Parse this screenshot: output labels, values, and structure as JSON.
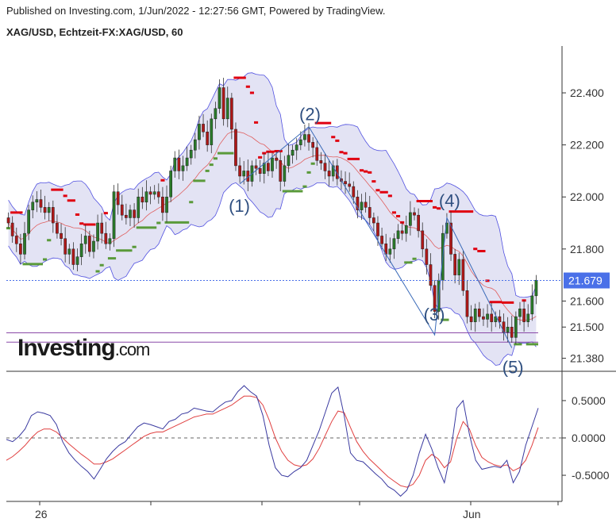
{
  "header": {
    "published": "Published on Investing.com, 1/Jun/2022 - 12:27:56 GMT, Powered by TradingView.",
    "symbol": "XAG/USD, Echtzeit-FX:XAG/USD, 60"
  },
  "logo": {
    "brand": "Investing",
    "suffix": ".com"
  },
  "colors": {
    "bollinger_fill": "#e3e3f4",
    "bollinger_line": "#5050e0",
    "mid_line": "#e06060",
    "up_stop": "#e00010",
    "down_stop": "#5a9a3a",
    "candle_up": "#2a7a2a",
    "candle_down": "#b01818",
    "last_price": "#4a70e8",
    "osc_fast": "#3a3aa0",
    "osc_slow": "#e04040"
  },
  "chart_data": [
    {
      "type": "candlestick",
      "ylim": [
        21.33,
        22.58
      ],
      "yticks": [
        "22.400",
        "22.200",
        "22.000",
        "21.800",
        "21.600",
        "21.500",
        "21.380"
      ],
      "last_price_label": "21.679",
      "last_price": 21.679,
      "xticks": [
        "26",
        "Jun"
      ],
      "wave_labels": [
        "(1)",
        "(2)",
        "(3)",
        "(4)",
        "(5)"
      ],
      "wave_points": [
        {
          "label": "(1)",
          "bar": 57,
          "price": 22.05
        },
        {
          "label": "(2)",
          "bar": 74,
          "price": 22.27
        },
        {
          "label": "(3)",
          "bar": 105,
          "price": 21.47
        },
        {
          "label": "(4)",
          "bar": 108,
          "price": 21.92
        },
        {
          "label": "(5)",
          "bar": 124,
          "price": 21.42
        }
      ],
      "horizontal_levels": [
        21.478,
        21.442
      ],
      "close": [
        21.9,
        21.85,
        21.82,
        21.78,
        21.86,
        21.95,
        21.98,
        21.99,
        21.96,
        21.94,
        21.96,
        21.9,
        21.86,
        21.84,
        21.78,
        21.8,
        21.74,
        21.77,
        21.82,
        21.85,
        21.79,
        21.83,
        21.9,
        21.86,
        21.82,
        21.84,
        22.02,
        21.97,
        21.93,
        21.92,
        21.95,
        21.92,
        22.0,
        21.98,
        22.02,
        22.01,
        22.02,
        22.0,
        21.94,
        22.0,
        22.1,
        22.15,
        22.1,
        22.12,
        22.15,
        22.18,
        22.22,
        22.28,
        22.25,
        22.2,
        22.3,
        22.34,
        22.42,
        22.3,
        22.38,
        22.26,
        22.12,
        22.08,
        22.1,
        22.06,
        22.12,
        22.11,
        22.09,
        22.13,
        22.1,
        22.15,
        22.14,
        22.06,
        22.12,
        22.16,
        22.18,
        22.2,
        22.22,
        22.24,
        22.21,
        22.19,
        22.14,
        22.13,
        22.1,
        22.08,
        22.12,
        22.07,
        22.06,
        22.05,
        22.04,
        22.0,
        21.95,
        21.98,
        21.96,
        21.92,
        21.9,
        21.85,
        21.82,
        21.78,
        21.8,
        21.84,
        21.87,
        21.86,
        21.89,
        21.94,
        21.93,
        21.87,
        21.8,
        21.74,
        21.66,
        21.56,
        21.68,
        21.86,
        21.9,
        21.78,
        21.7,
        21.76,
        21.64,
        21.54,
        21.52,
        21.57,
        21.54,
        21.53,
        21.55,
        21.52,
        21.54,
        21.52,
        21.48,
        21.5,
        21.46,
        21.54,
        21.57,
        21.52,
        21.55,
        21.62,
        21.68
      ]
    },
    {
      "type": "line",
      "ylim": [
        -0.85,
        0.85
      ],
      "yticks": [
        "0.5000",
        "0.0000",
        "-0.5000"
      ],
      "series": [
        {
          "name": "",
          "values": [
            -0.02,
            -0.05,
            0.02,
            0.12,
            0.3,
            0.35,
            0.33,
            0.3,
            0.18,
            -0.05,
            -0.2,
            -0.3,
            -0.38,
            -0.45,
            -0.55,
            -0.42,
            -0.28,
            -0.18,
            -0.1,
            -0.05,
            0.05,
            0.15,
            0.2,
            0.18,
            0.15,
            0.12,
            0.22,
            0.25,
            0.32,
            0.34,
            0.4,
            0.38,
            0.36,
            0.35,
            0.42,
            0.48,
            0.5,
            0.62,
            0.7,
            0.62,
            0.56,
            0.3,
            -0.1,
            -0.4,
            -0.5,
            -0.52,
            -0.45,
            -0.4,
            -0.3,
            -0.1,
            0.1,
            0.35,
            0.6,
            0.68,
            0.3,
            -0.2,
            -0.3,
            -0.32,
            -0.4,
            -0.48,
            -0.55,
            -0.65,
            -0.7,
            -0.78,
            -0.7,
            -0.5,
            -0.2,
            0.05,
            -0.15,
            -0.4,
            -0.6,
            -0.2,
            0.4,
            0.5,
            0.05,
            -0.3,
            -0.42,
            -0.4,
            -0.38,
            -0.4,
            -0.3,
            -0.6,
            -0.45,
            -0.1,
            0.15,
            0.4
          ]
        },
        {
          "name": "",
          "values": [
            -0.3,
            -0.25,
            -0.18,
            -0.1,
            0.0,
            0.08,
            0.12,
            0.12,
            0.08,
            0.0,
            -0.08,
            -0.15,
            -0.22,
            -0.28,
            -0.35,
            -0.35,
            -0.32,
            -0.28,
            -0.22,
            -0.16,
            -0.1,
            -0.04,
            0.02,
            0.06,
            0.08,
            0.08,
            0.12,
            0.16,
            0.2,
            0.24,
            0.28,
            0.3,
            0.32,
            0.32,
            0.36,
            0.4,
            0.44,
            0.5,
            0.56,
            0.56,
            0.54,
            0.44,
            0.24,
            0.0,
            -0.18,
            -0.3,
            -0.36,
            -0.38,
            -0.36,
            -0.28,
            -0.14,
            0.04,
            0.22,
            0.36,
            0.34,
            0.14,
            -0.05,
            -0.18,
            -0.28,
            -0.36,
            -0.44,
            -0.52,
            -0.58,
            -0.64,
            -0.66,
            -0.62,
            -0.5,
            -0.3,
            -0.22,
            -0.28,
            -0.4,
            -0.32,
            0.0,
            0.22,
            0.12,
            -0.1,
            -0.26,
            -0.32,
            -0.36,
            -0.38,
            -0.36,
            -0.44,
            -0.4,
            -0.3,
            -0.1,
            0.14
          ]
        }
      ]
    }
  ]
}
